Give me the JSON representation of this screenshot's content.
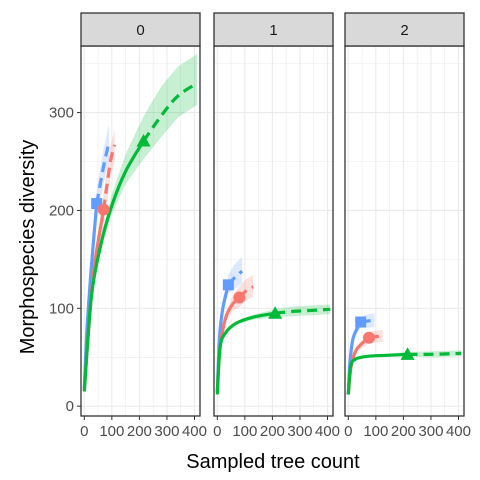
{
  "chart_data": {
    "type": "line",
    "ylabel": "Morphospecies diversity",
    "xlabel": "Sampled tree count",
    "xlim": [
      -12,
      420
    ],
    "ylim": [
      -10,
      368
    ],
    "x_ticks": [
      0,
      100,
      200,
      300,
      400
    ],
    "x_tick_labels": [
      "0",
      "100",
      "200",
      "300",
      "400"
    ],
    "y_ticks": [
      0,
      100,
      200,
      300
    ],
    "y_tick_labels": [
      "0",
      "100",
      "200",
      "300"
    ],
    "grid": true,
    "colors": {
      "blue": "#619cff",
      "red": "#f8766d",
      "green": "#00ba38",
      "strip_fill": "#d9d9d9",
      "frame": "#333333",
      "grid": "#ebebeb"
    },
    "panels": [
      {
        "strip": "0",
        "series": [
          {
            "color": "blue",
            "marker": "square",
            "observed_n": 45,
            "observed_s": 207,
            "ci_upper": 18,
            "ci_lower": 18,
            "points": [
              [
                0,
                18
              ],
              [
                10,
                80
              ],
              [
                25,
                140
              ],
              [
                45,
                207
              ],
              [
                70,
                245
              ],
              [
                90,
                270
              ]
            ]
          },
          {
            "color": "red",
            "marker": "circle",
            "observed_n": 70,
            "observed_s": 201,
            "ci_upper": 16,
            "ci_lower": 16,
            "points": [
              [
                0,
                16
              ],
              [
                15,
                75
              ],
              [
                35,
                140
              ],
              [
                70,
                201
              ],
              [
                95,
                250
              ],
              [
                110,
                267
              ]
            ]
          },
          {
            "color": "green",
            "marker": "triangle",
            "observed_n": 215,
            "observed_s": 271,
            "ci_upper": 30,
            "ci_lower": 22,
            "points": [
              [
                0,
                15
              ],
              [
                25,
                110
              ],
              [
                60,
                165
              ],
              [
                100,
                205
              ],
              [
                150,
                240
              ],
              [
                215,
                271
              ],
              [
                280,
                297
              ],
              [
                340,
                317
              ],
              [
                410,
                330
              ]
            ]
          }
        ]
      },
      {
        "strip": "1",
        "series": [
          {
            "color": "blue",
            "marker": "square",
            "observed_n": 40,
            "observed_s": 124,
            "ci_upper": 14,
            "ci_lower": 12,
            "points": [
              [
                0,
                15
              ],
              [
                8,
                70
              ],
              [
                20,
                100
              ],
              [
                40,
                124
              ],
              [
                65,
                132
              ],
              [
                90,
                138
              ]
            ]
          },
          {
            "color": "red",
            "marker": "circle",
            "observed_n": 80,
            "observed_s": 111,
            "ci_upper": 12,
            "ci_lower": 10,
            "points": [
              [
                0,
                14
              ],
              [
                10,
                60
              ],
              [
                30,
                90
              ],
              [
                55,
                104
              ],
              [
                80,
                111
              ],
              [
                105,
                118
              ],
              [
                130,
                122
              ]
            ]
          },
          {
            "color": "green",
            "marker": "triangle",
            "observed_n": 210,
            "observed_s": 95,
            "ci_upper": 5,
            "ci_lower": 5,
            "points": [
              [
                0,
                12
              ],
              [
                10,
                60
              ],
              [
                30,
                75
              ],
              [
                70,
                85
              ],
              [
                130,
                91
              ],
              [
                210,
                95
              ],
              [
                280,
                97
              ],
              [
                350,
                98
              ],
              [
                410,
                99
              ]
            ]
          }
        ]
      },
      {
        "strip": "2",
        "series": [
          {
            "color": "blue",
            "marker": "square",
            "observed_n": 45,
            "observed_s": 86,
            "ci_upper": 7,
            "ci_lower": 7,
            "points": [
              [
                0,
                12
              ],
              [
                6,
                45
              ],
              [
                18,
                70
              ],
              [
                45,
                86
              ],
              [
                70,
                87
              ],
              [
                95,
                88
              ]
            ]
          },
          {
            "color": "red",
            "marker": "circle",
            "observed_n": 75,
            "observed_s": 70,
            "ci_upper": 6,
            "ci_lower": 6,
            "points": [
              [
                0,
                12
              ],
              [
                10,
                40
              ],
              [
                30,
                58
              ],
              [
                75,
                70
              ],
              [
                100,
                71
              ],
              [
                125,
                72
              ]
            ]
          },
          {
            "color": "green",
            "marker": "triangle",
            "observed_n": 215,
            "observed_s": 53,
            "ci_upper": 3,
            "ci_lower": 3,
            "points": [
              [
                0,
                12
              ],
              [
                8,
                40
              ],
              [
                25,
                48
              ],
              [
                70,
                51
              ],
              [
                140,
                52
              ],
              [
                215,
                53
              ],
              [
                300,
                53
              ],
              [
                410,
                54
              ]
            ]
          }
        ]
      }
    ]
  }
}
